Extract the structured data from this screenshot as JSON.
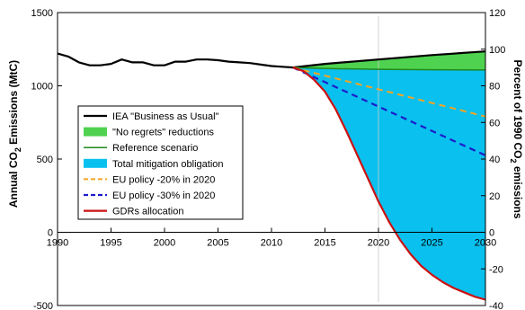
{
  "chart_data": {
    "type": "line",
    "xlim": [
      1990,
      2030
    ],
    "x_ticks": [
      1990,
      1995,
      2000,
      2005,
      2010,
      2015,
      2020,
      2025,
      2030
    ],
    "ylim": [
      -500,
      1500
    ],
    "y_ticks": [
      -500,
      0,
      500,
      1000,
      1500
    ],
    "ylabel": {
      "pre": "Annual CO",
      "sub": "2",
      "post": " Emissions (MtC)"
    },
    "y2lim": [
      -40,
      120
    ],
    "y2_ticks": [
      -40,
      -20,
      0,
      20,
      40,
      60,
      80,
      100,
      120
    ],
    "y2label": {
      "pre": "Percent of 1990 CO",
      "sub": "2",
      "post": " emissions"
    },
    "grid": false,
    "legend_position": "center-left",
    "series": [
      {
        "name": "IEA \"Business as Usual\"",
        "style": "line",
        "color": "#000000",
        "width": 2.2,
        "x": [
          1990,
          1991,
          1992,
          1993,
          1994,
          1995,
          1996,
          1997,
          1998,
          1999,
          2000,
          2001,
          2002,
          2003,
          2004,
          2005,
          2006,
          2007,
          2008,
          2009,
          2010,
          2011,
          2012,
          2015,
          2020,
          2025,
          2030
        ],
        "y": [
          1220,
          1200,
          1160,
          1140,
          1140,
          1150,
          1180,
          1160,
          1160,
          1140,
          1140,
          1165,
          1165,
          1180,
          1180,
          1175,
          1165,
          1160,
          1155,
          1145,
          1135,
          1130,
          1125,
          1150,
          1180,
          1210,
          1235
        ]
      },
      {
        "name": "\"No regrets\" reductions",
        "style": "band",
        "color": "#4fd24f",
        "x": [
          2012,
          2015,
          2020,
          2025,
          2030
        ],
        "y_upper": [
          1125,
          1150,
          1180,
          1210,
          1235
        ],
        "y_lower": [
          1125,
          1118,
          1113,
          1110,
          1108
        ]
      },
      {
        "name": "Reference scenario",
        "style": "line",
        "color": "#1e8a1e",
        "width": 1.5,
        "x": [
          2012,
          2015,
          2020,
          2025,
          2030
        ],
        "y": [
          1125,
          1118,
          1113,
          1110,
          1108
        ]
      },
      {
        "name": "Total mitigation obligation",
        "style": "band",
        "color": "#0ac0ee",
        "x": [
          2012,
          2013,
          2014,
          2015,
          2016,
          2017,
          2018,
          2019,
          2020,
          2021,
          2022,
          2023,
          2024,
          2025,
          2026,
          2027,
          2028,
          2029,
          2030
        ],
        "y_upper": [
          1125,
          1123,
          1120,
          1118,
          1117,
          1116,
          1115,
          1114,
          1113,
          1112,
          1112,
          1111,
          1111,
          1110,
          1110,
          1109,
          1109,
          1108,
          1108
        ],
        "y_lower": [
          1125,
          1100,
          1040,
          960,
          840,
          690,
          530,
          370,
          210,
          70,
          -50,
          -150,
          -230,
          -290,
          -340,
          -380,
          -410,
          -440,
          -460
        ]
      },
      {
        "name": "EU policy -20% in 2020",
        "style": "dashed",
        "color": "#f5a623",
        "width": 2,
        "x": [
          2012,
          2030
        ],
        "y": [
          1125,
          790
        ]
      },
      {
        "name": "EU policy -30% in 2020",
        "style": "dashed",
        "color": "#1c1ccc",
        "width": 2.2,
        "x": [
          2012,
          2030
        ],
        "y": [
          1125,
          525
        ]
      },
      {
        "name": "GDRs allocation",
        "style": "line",
        "color": "#cc1111",
        "width": 2.2,
        "x": [
          2012,
          2013,
          2014,
          2015,
          2016,
          2017,
          2018,
          2019,
          2020,
          2021,
          2022,
          2023,
          2024,
          2025,
          2026,
          2027,
          2028,
          2029,
          2030
        ],
        "y": [
          1125,
          1100,
          1040,
          960,
          840,
          690,
          530,
          370,
          210,
          70,
          -50,
          -150,
          -230,
          -290,
          -340,
          -380,
          -410,
          -440,
          -460
        ]
      }
    ]
  }
}
